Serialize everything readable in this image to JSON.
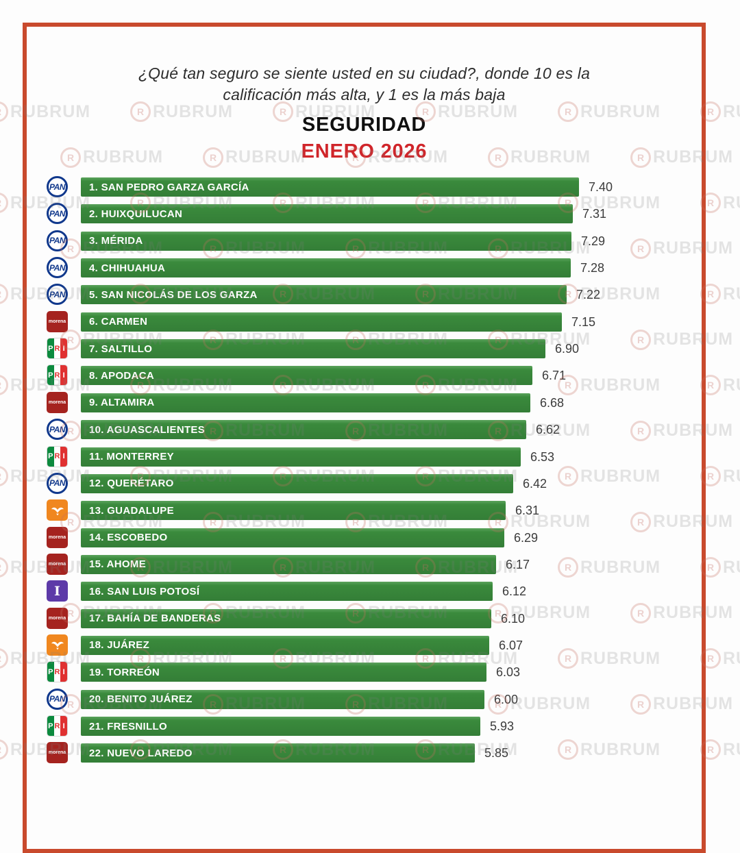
{
  "header": {
    "question_line1": "¿Qué tan seguro se siente usted en su ciudad?, donde 10 es la",
    "question_line2": "calificación más alta, y  1 es la más baja",
    "title": "SEGURIDAD",
    "subtitle": "ENERO 2026",
    "title_color": "#101010",
    "subtitle_color": "#d0252a"
  },
  "watermark": {
    "text": "RUBRUM",
    "ring_letter": "R"
  },
  "frame_color": "#c94a2d",
  "chart_data": {
    "type": "bar",
    "title": "SEGURIDAD",
    "subtitle": "ENERO 2026",
    "question": "¿Qué tan seguro se siente usted en su ciudad?, donde 10 es la calificación más alta, y 1 es la más baja",
    "orientation": "horizontal",
    "xlim": [
      0,
      7.4
    ],
    "grid": false,
    "bar_color": "#3a8a3c",
    "value_label_color": "#3b3b3b",
    "rows": [
      {
        "rank": 1,
        "city": "SAN PEDRO GARZA GARCÍA",
        "label": "1. SAN PEDRO GARZA GARCÍA",
        "value": 7.4,
        "value_label": "7.40",
        "party": "PAN"
      },
      {
        "rank": 2,
        "city": "HUIXQUILUCAN",
        "label": "2. HUIXQUILUCAN",
        "value": 7.31,
        "value_label": "7.31",
        "party": "PAN"
      },
      {
        "rank": 3,
        "city": "MÉRIDA",
        "label": "3. MÉRIDA",
        "value": 7.29,
        "value_label": "7.29",
        "party": "PAN"
      },
      {
        "rank": 4,
        "city": "CHIHUAHUA",
        "label": "4. CHIHUAHUA",
        "value": 7.28,
        "value_label": "7.28",
        "party": "PAN"
      },
      {
        "rank": 5,
        "city": "SAN NICOLÁS DE LOS GARZA",
        "label": "5. SAN NICOLÁS DE LOS GARZA",
        "value": 7.22,
        "value_label": "7.22",
        "party": "PAN"
      },
      {
        "rank": 6,
        "city": "CARMEN",
        "label": "6. CARMEN",
        "value": 7.15,
        "value_label": "7.15",
        "party": "MORENA"
      },
      {
        "rank": 7,
        "city": "SALTILLO",
        "label": "7. SALTILLO",
        "value": 6.9,
        "value_label": "6.90",
        "party": "PRI"
      },
      {
        "rank": 8,
        "city": "APODACA",
        "label": "8. APODACA",
        "value": 6.71,
        "value_label": "6.71",
        "party": "PRI"
      },
      {
        "rank": 9,
        "city": "ALTAMIRA",
        "label": "9. ALTAMIRA",
        "value": 6.68,
        "value_label": "6.68",
        "party": "MORENA"
      },
      {
        "rank": 10,
        "city": "AGUASCALIENTES",
        "label": "10. AGUASCALIENTES",
        "value": 6.62,
        "value_label": "6.62",
        "party": "PAN"
      },
      {
        "rank": 11,
        "city": "MONTERREY",
        "label": "11. MONTERREY",
        "value": 6.53,
        "value_label": "6.53",
        "party": "PRI"
      },
      {
        "rank": 12,
        "city": "QUERÉTARO",
        "label": "12. QUERÉTARO",
        "value": 6.42,
        "value_label": "6.42",
        "party": "PAN"
      },
      {
        "rank": 13,
        "city": "GUADALUPE",
        "label": "13. GUADALUPE",
        "value": 6.31,
        "value_label": "6.31",
        "party": "MC"
      },
      {
        "rank": 14,
        "city": "ESCOBEDO",
        "label": "14. ESCOBEDO",
        "value": 6.29,
        "value_label": "6.29",
        "party": "MORENA"
      },
      {
        "rank": 15,
        "city": "AHOME",
        "label": "15. AHOME",
        "value": 6.17,
        "value_label": "6.17",
        "party": "MORENA"
      },
      {
        "rank": 16,
        "city": "SAN LUIS POTOSÍ",
        "label": "16. SAN LUIS POTOSÍ",
        "value": 6.12,
        "value_label": "6.12",
        "party": "INDEP"
      },
      {
        "rank": 17,
        "city": "BAHÍA DE BANDERAS",
        "label": "17. BAHÍA DE BANDERAS",
        "value": 6.1,
        "value_label": "6.10",
        "party": "MORENA"
      },
      {
        "rank": 18,
        "city": "JUÁREZ",
        "label": "18. JUÁREZ",
        "value": 6.07,
        "value_label": "6.07",
        "party": "MC"
      },
      {
        "rank": 19,
        "city": "TORREÓN",
        "label": "19. TORREÓN",
        "value": 6.03,
        "value_label": "6.03",
        "party": "PRI"
      },
      {
        "rank": 20,
        "city": "BENITO JUÁREZ",
        "label": "20. BENITO JUÁREZ",
        "value": 6.0,
        "value_label": "6.00",
        "party": "PAN"
      },
      {
        "rank": 21,
        "city": "FRESNILLO",
        "label": "21. FRESNILLO",
        "value": 5.93,
        "value_label": "5.93",
        "party": "PRI"
      },
      {
        "rank": 22,
        "city": "NUEVO LAREDO",
        "label": "22. NUEVO LAREDO",
        "value": 5.85,
        "value_label": "5.85",
        "party": "MORENA"
      }
    ],
    "parties": {
      "PAN": {
        "shape": "circle",
        "label": "PAN",
        "color": "#10388c"
      },
      "PRI": {
        "shape": "tricolor",
        "letters": [
          "P",
          "R",
          "I"
        ],
        "green": "#0c8a3e",
        "red": "#e03131"
      },
      "MORENA": {
        "shape": "square",
        "label": "morena",
        "color": "#a5231f"
      },
      "MC": {
        "shape": "eagle",
        "label": "",
        "color": "#f0871f"
      },
      "INDEP": {
        "shape": "letter",
        "label": "I",
        "color": "#5d3aa8"
      }
    }
  }
}
